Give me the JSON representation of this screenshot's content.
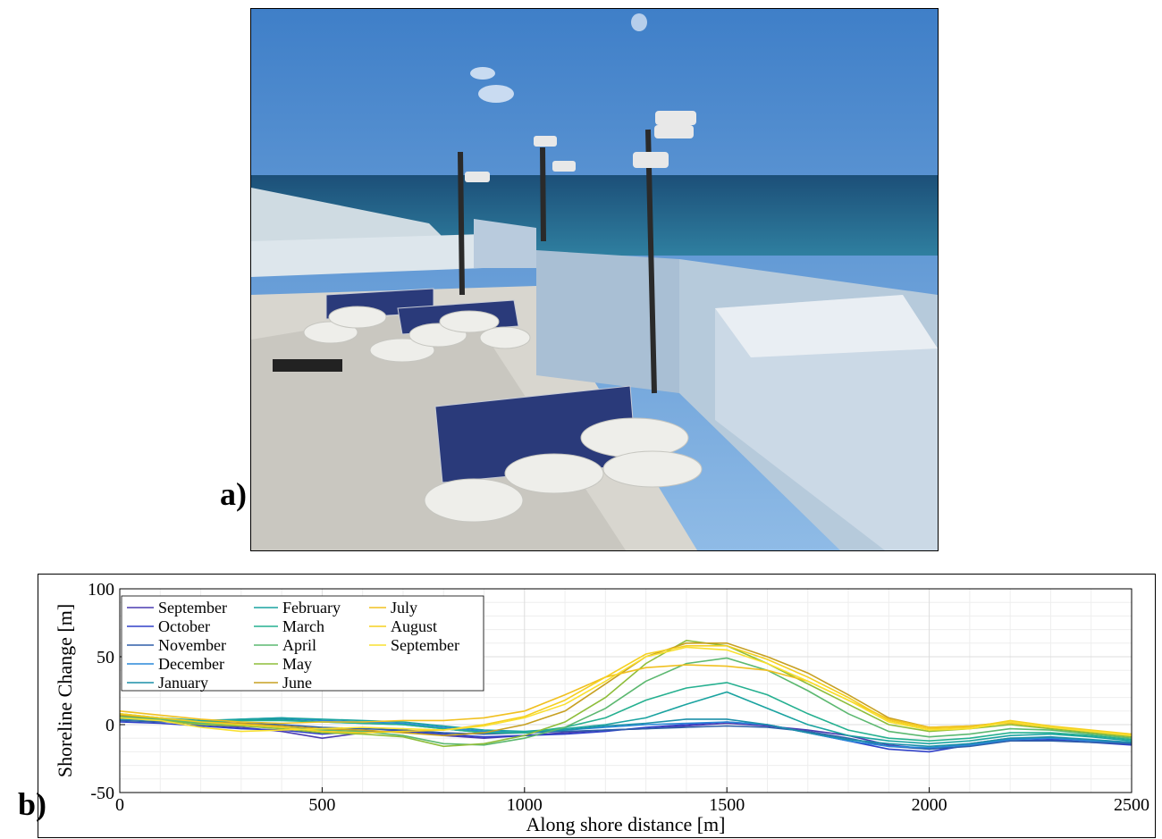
{
  "panels": {
    "a": {
      "label": "a)"
    },
    "b": {
      "label": "b)"
    }
  },
  "chart_data": {
    "type": "line",
    "xlabel": "Along shore distance [m]",
    "ylabel": "Shoreline Change [m]",
    "xlim": [
      0,
      2500
    ],
    "xticks": [
      0,
      500,
      1000,
      1500,
      2000,
      2500
    ],
    "ylim": [
      -50,
      100
    ],
    "yticks": [
      -50,
      0,
      50,
      100
    ],
    "grid": true,
    "legend": "upper left",
    "x": [
      0,
      100,
      200,
      300,
      400,
      500,
      600,
      700,
      800,
      900,
      1000,
      1100,
      1200,
      1300,
      1400,
      1500,
      1600,
      1700,
      1800,
      1900,
      2000,
      2100,
      2200,
      2300,
      2400,
      2500
    ],
    "series": [
      {
        "name": "September",
        "color": "#4a3bb0",
        "values": [
          5,
          3,
          0,
          -2,
          -5,
          -10,
          -6,
          -4,
          -8,
          -10,
          -8,
          -6,
          -4,
          -3,
          -1,
          1,
          -1,
          -4,
          -8,
          -15,
          -18,
          -14,
          -10,
          -10,
          -12,
          -14
        ]
      },
      {
        "name": "October",
        "color": "#3040c8",
        "values": [
          2,
          1,
          -1,
          -3,
          -4,
          -7,
          -5,
          -5,
          -7,
          -9,
          -8,
          -7,
          -5,
          -2,
          0,
          2,
          0,
          -6,
          -12,
          -18,
          -20,
          -15,
          -12,
          -11,
          -13,
          -15
        ]
      },
      {
        "name": "November",
        "color": "#2e5fa8",
        "values": [
          3,
          2,
          2,
          1,
          0,
          -2,
          -3,
          -4,
          -6,
          -7,
          -6,
          -5,
          -4,
          -3,
          -2,
          -1,
          -2,
          -5,
          -10,
          -16,
          -18,
          -16,
          -12,
          -12,
          -13,
          -14
        ]
      },
      {
        "name": "December",
        "color": "#2a88d8",
        "values": [
          6,
          4,
          2,
          4,
          5,
          3,
          2,
          1,
          -2,
          -5,
          -6,
          -4,
          -2,
          0,
          1,
          2,
          0,
          -6,
          -12,
          -16,
          -17,
          -15,
          -11,
          -10,
          -12,
          -13
        ]
      },
      {
        "name": "January",
        "color": "#1b8fa8",
        "values": [
          4,
          3,
          1,
          3,
          4,
          2,
          1,
          0,
          -3,
          -6,
          -6,
          -4,
          -1,
          1,
          4,
          4,
          0,
          -6,
          -11,
          -14,
          -16,
          -14,
          -10,
          -9,
          -11,
          -13
        ]
      },
      {
        "name": "February",
        "color": "#1aa3a0",
        "values": [
          7,
          5,
          3,
          4,
          5,
          4,
          3,
          2,
          -1,
          -4,
          -5,
          -3,
          0,
          5,
          15,
          24,
          12,
          0,
          -8,
          -12,
          -14,
          -12,
          -8,
          -7,
          -9,
          -12
        ]
      },
      {
        "name": "March",
        "color": "#25b090",
        "values": [
          8,
          5,
          2,
          3,
          3,
          2,
          1,
          0,
          -3,
          -6,
          -6,
          -2,
          5,
          18,
          27,
          31,
          22,
          8,
          -4,
          -10,
          -12,
          -10,
          -6,
          -6,
          -8,
          -11
        ]
      },
      {
        "name": "April",
        "color": "#5cb870",
        "values": [
          6,
          4,
          1,
          0,
          -2,
          -4,
          -5,
          -8,
          -14,
          -15,
          -10,
          -2,
          12,
          32,
          45,
          49,
          40,
          25,
          8,
          -5,
          -9,
          -7,
          -3,
          -4,
          -7,
          -10
        ]
      },
      {
        "name": "May",
        "color": "#8ebd3a",
        "values": [
          5,
          3,
          0,
          -1,
          -3,
          -6,
          -7,
          -9,
          -16,
          -14,
          -8,
          2,
          20,
          45,
          62,
          58,
          45,
          30,
          15,
          0,
          -5,
          -3,
          0,
          -3,
          -6,
          -9
        ]
      },
      {
        "name": "June",
        "color": "#c7a022",
        "values": [
          7,
          5,
          2,
          1,
          -1,
          -3,
          -4,
          -6,
          -8,
          -6,
          0,
          10,
          30,
          50,
          60,
          60,
          50,
          38,
          22,
          5,
          -2,
          -1,
          2,
          -2,
          -5,
          -8
        ]
      },
      {
        "name": "July",
        "color": "#f0c020",
        "values": [
          10,
          7,
          4,
          2,
          1,
          2,
          2,
          3,
          3,
          5,
          10,
          22,
          35,
          42,
          44,
          43,
          40,
          32,
          18,
          4,
          -2,
          -1,
          1,
          -2,
          -5,
          -7
        ]
      },
      {
        "name": "August",
        "color": "#f5d020",
        "values": [
          8,
          5,
          2,
          0,
          -2,
          -5,
          -6,
          -5,
          -4,
          0,
          6,
          18,
          35,
          52,
          58,
          58,
          48,
          35,
          20,
          3,
          -3,
          -2,
          3,
          -1,
          -4,
          -7
        ]
      },
      {
        "name": "September",
        "color": "#f9e030",
        "values": [
          5,
          3,
          -2,
          -5,
          -4,
          -3,
          -2,
          -3,
          -4,
          -1,
          5,
          15,
          32,
          50,
          57,
          55,
          45,
          32,
          18,
          2,
          -4,
          -3,
          2,
          -2,
          -5,
          -8
        ]
      }
    ]
  }
}
